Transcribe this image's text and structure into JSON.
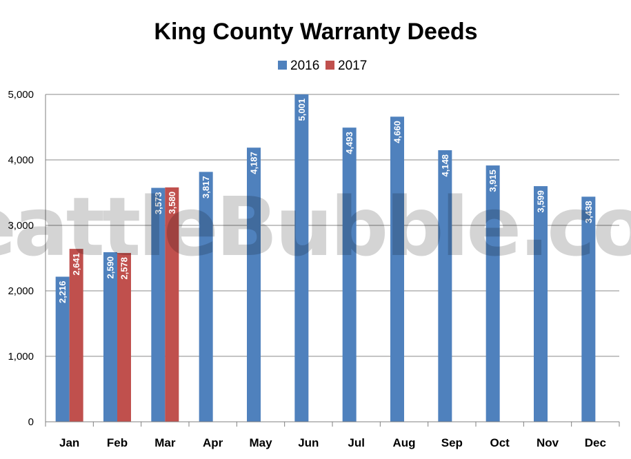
{
  "chart_data": {
    "type": "bar",
    "title": "King County Warranty Deeds",
    "watermark": "SeattleBubble.com",
    "categories": [
      "Jan",
      "Feb",
      "Mar",
      "Apr",
      "May",
      "Jun",
      "Jul",
      "Aug",
      "Sep",
      "Oct",
      "Nov",
      "Dec"
    ],
    "series": [
      {
        "name": "2016",
        "color": "#4F81BD",
        "values": [
          2216,
          2590,
          3573,
          3817,
          4187,
          5001,
          4493,
          4660,
          4148,
          3915,
          3599,
          3438
        ],
        "labels": [
          "2,216",
          "2,590",
          "3,573",
          "3,817",
          "4,187",
          "5,001",
          "4,493",
          "4,660",
          "4,148",
          "3,915",
          "3,599",
          "3,438"
        ]
      },
      {
        "name": "2017",
        "color": "#C0504D",
        "values": [
          2641,
          2578,
          3580,
          null,
          null,
          null,
          null,
          null,
          null,
          null,
          null,
          null
        ],
        "labels": [
          "2,641",
          "2,578",
          "3,580",
          "",
          "",
          "",
          "",
          "",
          "",
          "",
          "",
          ""
        ]
      }
    ],
    "ylim": [
      0,
      5000
    ],
    "yticks": [
      0,
      1000,
      2000,
      3000,
      4000,
      5000
    ],
    "ytick_labels": [
      "0",
      "1,000",
      "2,000",
      "3,000",
      "4,000",
      "5,000"
    ],
    "grid": true,
    "legend_position": "top-center",
    "xlabel": "",
    "ylabel": ""
  }
}
